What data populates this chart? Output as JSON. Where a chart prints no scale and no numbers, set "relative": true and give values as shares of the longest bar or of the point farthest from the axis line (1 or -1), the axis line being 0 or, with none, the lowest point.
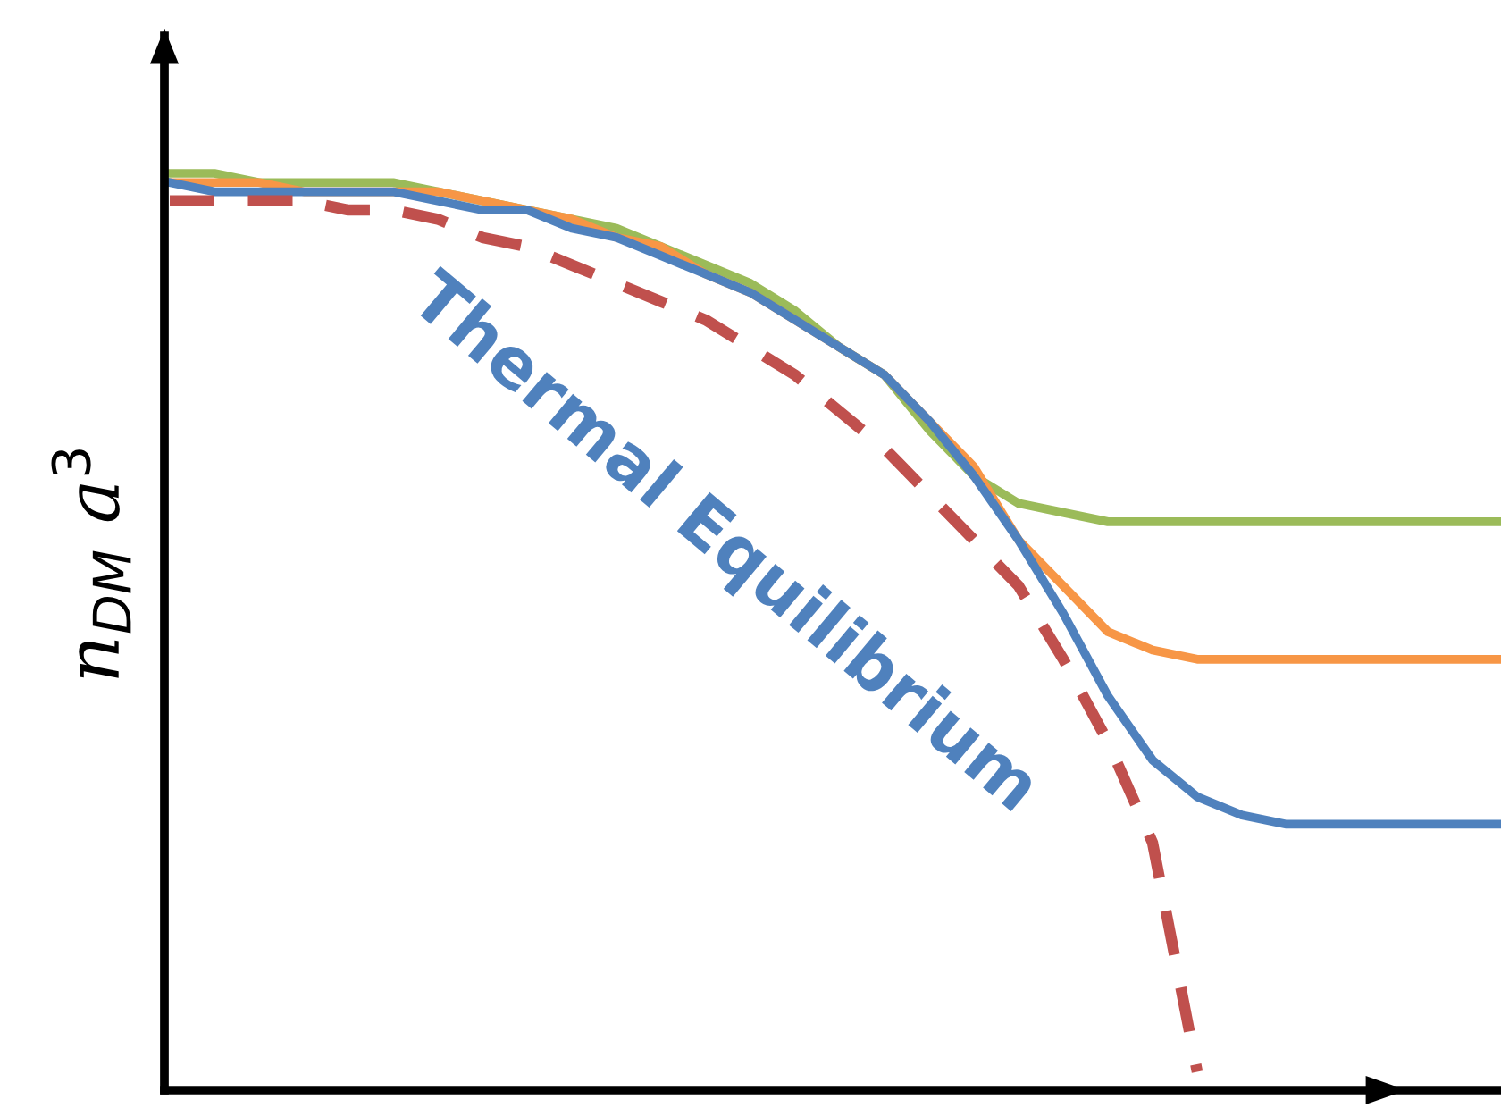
{
  "chart_data": {
    "type": "line",
    "relative": true,
    "ylabel": "n$_{DM}$ a$^{3}$",
    "categories": [
      null,
      null,
      null,
      null,
      null,
      null,
      null,
      null,
      null,
      null,
      null,
      null,
      null,
      null,
      null,
      null,
      null,
      null,
      null,
      null,
      null,
      null,
      null,
      null,
      null,
      null,
      null,
      null,
      null,
      null,
      null
    ],
    "series": [
      {
        "color": "#9bbb59",
        "line_style": "solid",
        "values": [
          1.0,
          1.0,
          0.99,
          0.99,
          0.99,
          0.99,
          0.98,
          0.97,
          0.96,
          0.95,
          0.94,
          0.92,
          0.9,
          0.88,
          0.85,
          0.81,
          0.78,
          0.72,
          0.67,
          0.64,
          0.63,
          0.62,
          0.62,
          0.62,
          0.62,
          0.62,
          0.62,
          0.62,
          0.62,
          0.62,
          0.62
        ]
      },
      {
        "color": "#f79646",
        "line_style": "solid",
        "values": [
          0.99,
          0.99,
          0.99,
          0.98,
          0.98,
          0.98,
          0.98,
          0.97,
          0.96,
          0.95,
          0.93,
          0.92,
          0.89,
          0.87,
          0.84,
          0.81,
          0.78,
          0.73,
          0.68,
          0.6,
          0.55,
          0.5,
          0.48,
          0.47,
          0.47,
          0.47,
          0.47,
          0.47,
          0.47,
          0.47,
          0.47
        ]
      },
      {
        "color": "#4f81bd",
        "line_style": "solid",
        "values": [
          0.99,
          0.98,
          0.98,
          0.98,
          0.98,
          0.98,
          0.97,
          0.96,
          0.96,
          0.94,
          0.93,
          0.91,
          0.89,
          0.87,
          0.84,
          0.81,
          0.78,
          0.73,
          0.67,
          0.6,
          0.52,
          0.43,
          0.36,
          0.32,
          0.3,
          0.29,
          0.29,
          0.29,
          0.29,
          0.29,
          0.29
        ]
      },
      {
        "color": "#c0504d",
        "line_style": "dashed",
        "values": [
          0.97,
          0.97,
          0.97,
          0.97,
          0.96,
          0.96,
          0.95,
          0.93,
          0.92,
          0.9,
          0.88,
          0.86,
          0.84,
          0.81,
          0.78,
          0.74,
          0.7,
          0.65,
          0.6,
          0.55,
          0.47,
          0.38,
          0.27,
          0.02,
          null,
          null,
          null,
          null,
          null,
          null,
          null
        ]
      }
    ],
    "annotations": [
      "Thermal Equilibrium"
    ],
    "marker": "none"
  }
}
